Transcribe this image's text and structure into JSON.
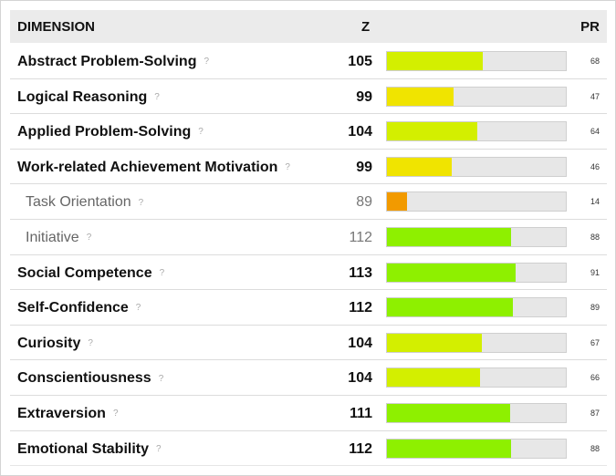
{
  "header": {
    "dimension": "DIMENSION",
    "z": "Z",
    "pr": "PR"
  },
  "help_glyph": "?",
  "rows": [
    {
      "name": "Abstract Problem-Solving",
      "z": "105",
      "pr": "68",
      "pr_value": 68,
      "sub": false,
      "color": "#d3ef00"
    },
    {
      "name": "Logical Reasoning",
      "z": "99",
      "pr": "47",
      "pr_value": 47,
      "sub": false,
      "color": "#f0e400"
    },
    {
      "name": "Applied Problem-Solving",
      "z": "104",
      "pr": "64",
      "pr_value": 64,
      "sub": false,
      "color": "#d3ef00"
    },
    {
      "name": "Work-related Achievement Motivation",
      "z": "99",
      "pr": "46",
      "pr_value": 46,
      "sub": false,
      "color": "#f0e400"
    },
    {
      "name": "Task Orientation",
      "z": "89",
      "pr": "14",
      "pr_value": 14,
      "sub": true,
      "color": "#f29a00"
    },
    {
      "name": "Initiative",
      "z": "112",
      "pr": "88",
      "pr_value": 88,
      "sub": true,
      "color": "#8ef000"
    },
    {
      "name": "Social Competence",
      "z": "113",
      "pr": "91",
      "pr_value": 91,
      "sub": false,
      "color": "#8ef000"
    },
    {
      "name": "Self-Confidence",
      "z": "112",
      "pr": "89",
      "pr_value": 89,
      "sub": false,
      "color": "#8ef000"
    },
    {
      "name": "Curiosity",
      "z": "104",
      "pr": "67",
      "pr_value": 67,
      "sub": false,
      "color": "#d3ef00"
    },
    {
      "name": "Conscientiousness",
      "z": "104",
      "pr": "66",
      "pr_value": 66,
      "sub": false,
      "color": "#d3ef00"
    },
    {
      "name": "Extraversion",
      "z": "111",
      "pr": "87",
      "pr_value": 87,
      "sub": false,
      "color": "#8ef000"
    },
    {
      "name": "Emotional Stability",
      "z": "112",
      "pr": "88",
      "pr_value": 88,
      "sub": false,
      "color": "#8ef000"
    }
  ]
}
